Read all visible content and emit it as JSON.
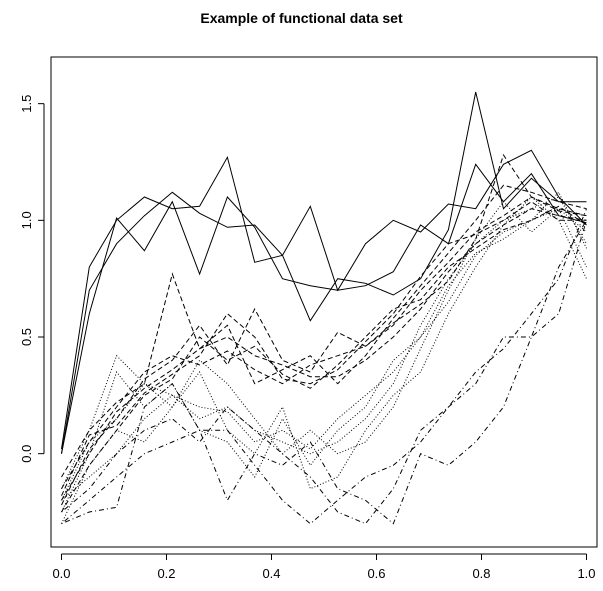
{
  "chart_data": {
    "type": "line",
    "title": "Example of functional data set",
    "xlabel": "",
    "ylabel": "",
    "xlim": [
      -0.02,
      1.02
    ],
    "ylim": [
      -0.4,
      1.7
    ],
    "x_ticks": [
      "0.0",
      "0.2",
      "0.4",
      "0.6",
      "0.8",
      "1.0"
    ],
    "y_ticks": [
      "0.0",
      "0.5",
      "1.0",
      "1.5"
    ],
    "grid": false,
    "legend": "none",
    "line_color": "#000000",
    "x": [
      0,
      0.053,
      0.105,
      0.158,
      0.211,
      0.263,
      0.316,
      0.368,
      0.421,
      0.474,
      0.526,
      0.579,
      0.632,
      0.684,
      0.737,
      0.789,
      0.842,
      0.895,
      0.947,
      1.0
    ],
    "series": [
      {
        "style": "solid",
        "values": [
          0.0,
          0.6,
          1.01,
          0.87,
          1.08,
          0.77,
          1.1,
          0.97,
          0.75,
          0.72,
          0.7,
          0.72,
          0.78,
          0.98,
          0.9,
          1.24,
          1.08,
          1.2,
          1.02,
          0.99
        ]
      },
      {
        "style": "solid",
        "values": [
          0.02,
          0.8,
          1.0,
          1.1,
          1.05,
          1.06,
          1.27,
          0.82,
          0.85,
          0.57,
          0.75,
          0.73,
          0.68,
          0.75,
          0.96,
          1.55,
          1.05,
          1.18,
          1.08,
          1.08
        ]
      },
      {
        "style": "solid",
        "values": [
          0.0,
          0.7,
          0.9,
          1.02,
          1.12,
          1.03,
          0.97,
          0.98,
          0.85,
          1.06,
          0.7,
          0.9,
          1.0,
          0.95,
          1.07,
          1.05,
          1.24,
          1.3,
          1.1,
          0.98
        ]
      },
      {
        "style": "dashed",
        "values": [
          -0.2,
          0.0,
          0.18,
          0.28,
          0.36,
          0.45,
          0.5,
          0.42,
          0.38,
          0.33,
          0.33,
          0.4,
          0.5,
          0.62,
          0.78,
          0.9,
          0.98,
          1.05,
          1.02,
          1.0
        ]
      },
      {
        "style": "dashed",
        "values": [
          -0.15,
          0.05,
          0.2,
          0.35,
          0.42,
          0.38,
          0.44,
          0.36,
          0.3,
          0.38,
          0.42,
          0.46,
          0.55,
          0.7,
          0.82,
          0.95,
          1.02,
          1.1,
          1.05,
          1.02
        ]
      },
      {
        "style": "dashed",
        "values": [
          -0.25,
          -0.05,
          0.1,
          0.25,
          0.32,
          0.5,
          0.4,
          0.46,
          0.34,
          0.28,
          0.38,
          0.5,
          0.62,
          0.66,
          0.8,
          0.88,
          0.96,
          1.0,
          1.06,
          0.98
        ]
      },
      {
        "style": "dashed",
        "values": [
          -0.1,
          0.1,
          0.22,
          0.3,
          0.77,
          0.45,
          0.55,
          0.3,
          0.36,
          0.42,
          0.3,
          0.42,
          0.58,
          0.72,
          0.86,
          1.0,
          1.15,
          1.12,
          1.08,
          1.05
        ]
      },
      {
        "style": "dashed",
        "values": [
          -0.22,
          0.02,
          0.15,
          0.32,
          0.4,
          0.55,
          0.38,
          0.62,
          0.4,
          0.35,
          0.52,
          0.46,
          0.56,
          0.64,
          0.74,
          0.92,
          1.28,
          1.1,
          1.04,
          1.02
        ]
      },
      {
        "style": "dashed",
        "values": [
          -0.18,
          0.08,
          0.12,
          0.26,
          0.34,
          0.42,
          0.6,
          0.5,
          0.32,
          0.3,
          0.36,
          0.48,
          0.6,
          0.76,
          0.9,
          0.94,
          1.0,
          1.08,
          1.0,
          1.0
        ]
      },
      {
        "style": "dotted",
        "values": [
          -0.2,
          -0.1,
          0.0,
          0.15,
          0.25,
          0.15,
          0.2,
          0.1,
          0.05,
          0.0,
          0.05,
          0.15,
          0.3,
          0.55,
          0.75,
          0.9,
          1.0,
          1.05,
          1.1,
          0.9
        ]
      },
      {
        "style": "dotted",
        "values": [
          -0.25,
          0.0,
          0.35,
          0.2,
          0.3,
          0.1,
          0.05,
          -0.1,
          0.15,
          -0.05,
          0.1,
          0.2,
          0.4,
          0.5,
          0.65,
          0.85,
          0.95,
          1.0,
          1.05,
          0.8
        ]
      },
      {
        "style": "dotted",
        "values": [
          -0.15,
          0.1,
          0.42,
          0.3,
          0.2,
          0.35,
          0.1,
          0.0,
          0.2,
          -0.15,
          -0.1,
          0.1,
          0.25,
          0.35,
          0.6,
          0.8,
          0.98,
          1.1,
          1.0,
          0.75
        ]
      },
      {
        "style": "dotted",
        "values": [
          -0.3,
          -0.05,
          0.1,
          0.05,
          0.2,
          0.4,
          0.3,
          0.15,
          0.0,
          0.1,
          0.0,
          0.05,
          0.2,
          0.45,
          0.7,
          0.92,
          1.08,
          0.95,
          1.05,
          0.95
        ]
      },
      {
        "style": "dotted",
        "values": [
          -0.2,
          0.05,
          0.15,
          0.3,
          0.25,
          0.2,
          0.18,
          0.05,
          0.1,
          0.02,
          0.15,
          0.25,
          0.35,
          0.5,
          0.72,
          0.86,
          0.92,
          1.0,
          1.12,
          0.88
        ]
      },
      {
        "style": "dotdash",
        "values": [
          -0.3,
          -0.25,
          -0.23,
          0.2,
          0.3,
          0.1,
          -0.2,
          0.0,
          -0.05,
          0.05,
          -0.15,
          -0.2,
          -0.3,
          0.0,
          -0.05,
          0.05,
          0.2,
          0.5,
          0.6,
          1.0
        ]
      },
      {
        "style": "dotdash",
        "values": [
          -0.25,
          -0.15,
          0.0,
          0.1,
          0.15,
          0.05,
          0.2,
          0.1,
          0.0,
          -0.1,
          -0.25,
          -0.3,
          -0.15,
          0.1,
          0.2,
          0.3,
          0.5,
          0.5,
          0.8,
          1.0
        ]
      },
      {
        "style": "dotdash",
        "values": [
          -0.3,
          -0.2,
          -0.1,
          0.0,
          0.05,
          0.1,
          0.1,
          -0.05,
          -0.2,
          -0.3,
          -0.2,
          -0.1,
          -0.05,
          0.05,
          0.2,
          0.35,
          0.45,
          0.6,
          0.75,
          1.05
        ]
      }
    ]
  }
}
